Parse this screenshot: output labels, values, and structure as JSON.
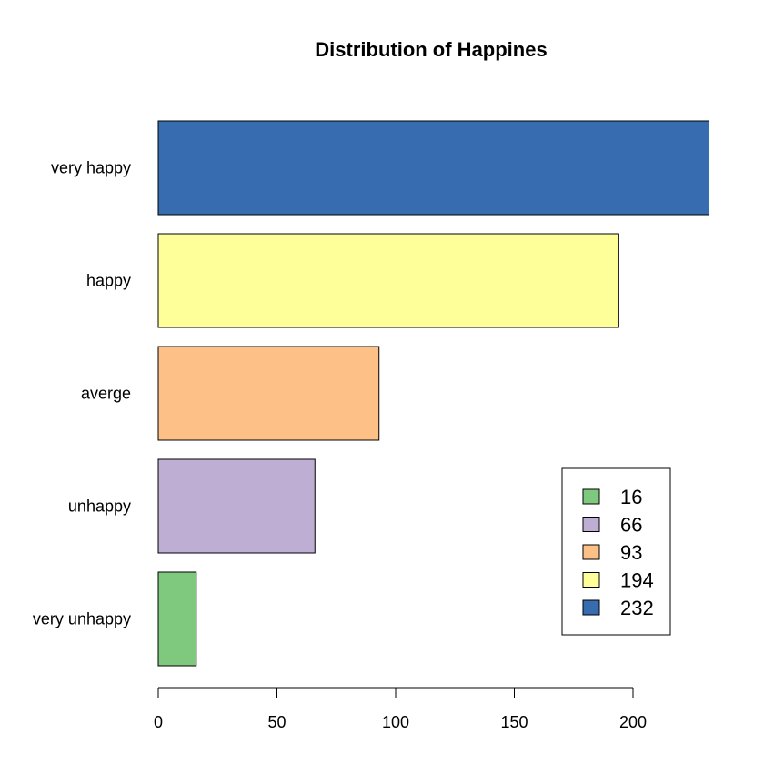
{
  "chart_data": {
    "type": "bar",
    "orientation": "horizontal",
    "title": "Distribution of Happines",
    "xlabel": "",
    "ylabel": "",
    "categories": [
      "very unhappy",
      "unhappy",
      "averge",
      "happy",
      "very happy"
    ],
    "values": [
      16,
      66,
      93,
      194,
      232
    ],
    "colors": [
      "#7FC97F",
      "#BEAED4",
      "#FDC086",
      "#FFFF99",
      "#386CB0"
    ],
    "xlim": [
      0,
      232
    ],
    "x_ticks": [
      0,
      50,
      100,
      150,
      200
    ],
    "grid": false,
    "legend": {
      "placement": "bottom-right",
      "entries": [
        "16",
        "66",
        "93",
        "194",
        "232"
      ]
    }
  }
}
